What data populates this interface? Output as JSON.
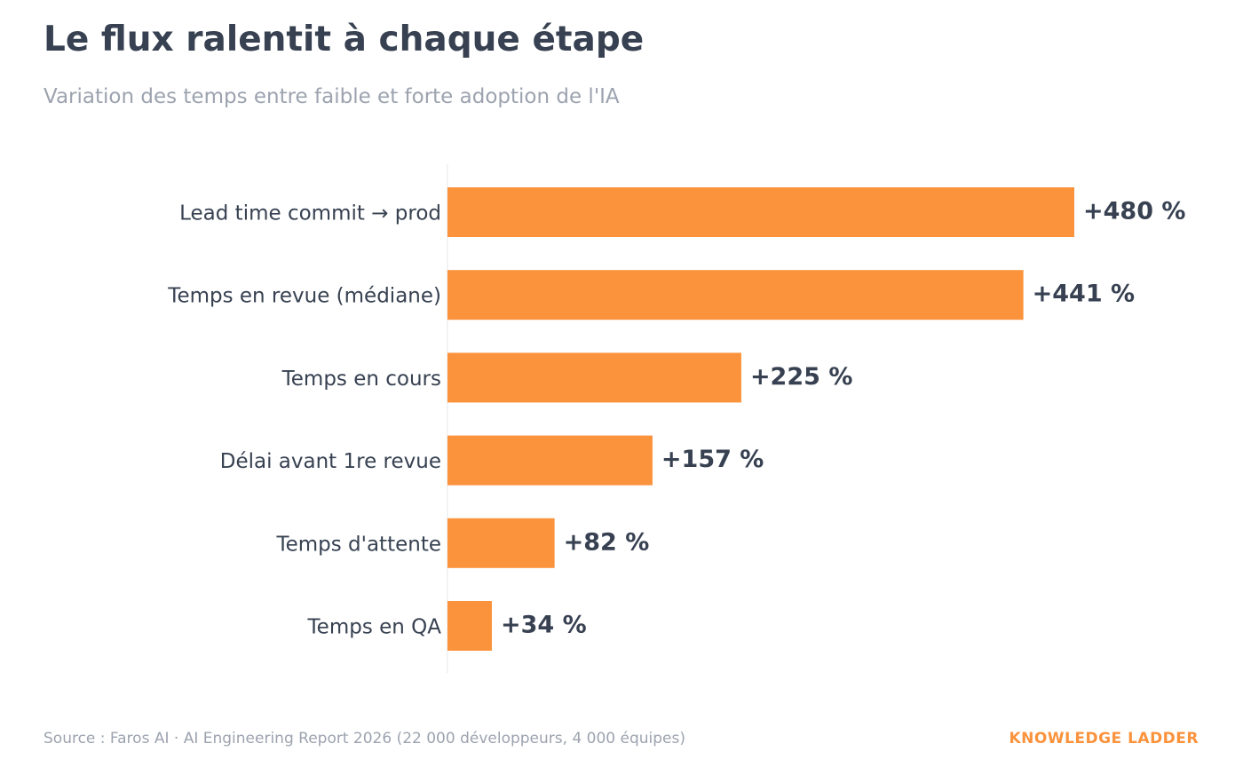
{
  "header": {
    "title": "Le flux ralentit à chaque étape",
    "subtitle": "Variation des temps entre faible et forte adoption de l'IA"
  },
  "chart_data": {
    "type": "bar",
    "orientation": "horizontal",
    "title": "Le flux ralentit à chaque étape",
    "subtitle": "Variation des temps entre faible et forte adoption de l'IA",
    "xlabel": "",
    "ylabel": "",
    "categories": [
      "Lead time commit → prod",
      "Temps en revue (médiane)",
      "Temps en cours",
      "Délai avant 1re revue",
      "Temps d'attente",
      "Temps en QA"
    ],
    "values": [
      480,
      441,
      225,
      157,
      82,
      34
    ],
    "value_labels": [
      "+480 %",
      "+441 %",
      "+225 %",
      "+157 %",
      "+82 %",
      "+34 %"
    ],
    "xlim": [
      0,
      480
    ],
    "grid": false,
    "legend": "none",
    "bar_color": "#fb923c"
  },
  "footer": {
    "source": "Source : Faros AI · AI Engineering Report 2026 (22 000 développeurs, 4 000 équipes)",
    "brand": "KNOWLEDGE LADDER",
    "brand_color": "#fb923c"
  }
}
